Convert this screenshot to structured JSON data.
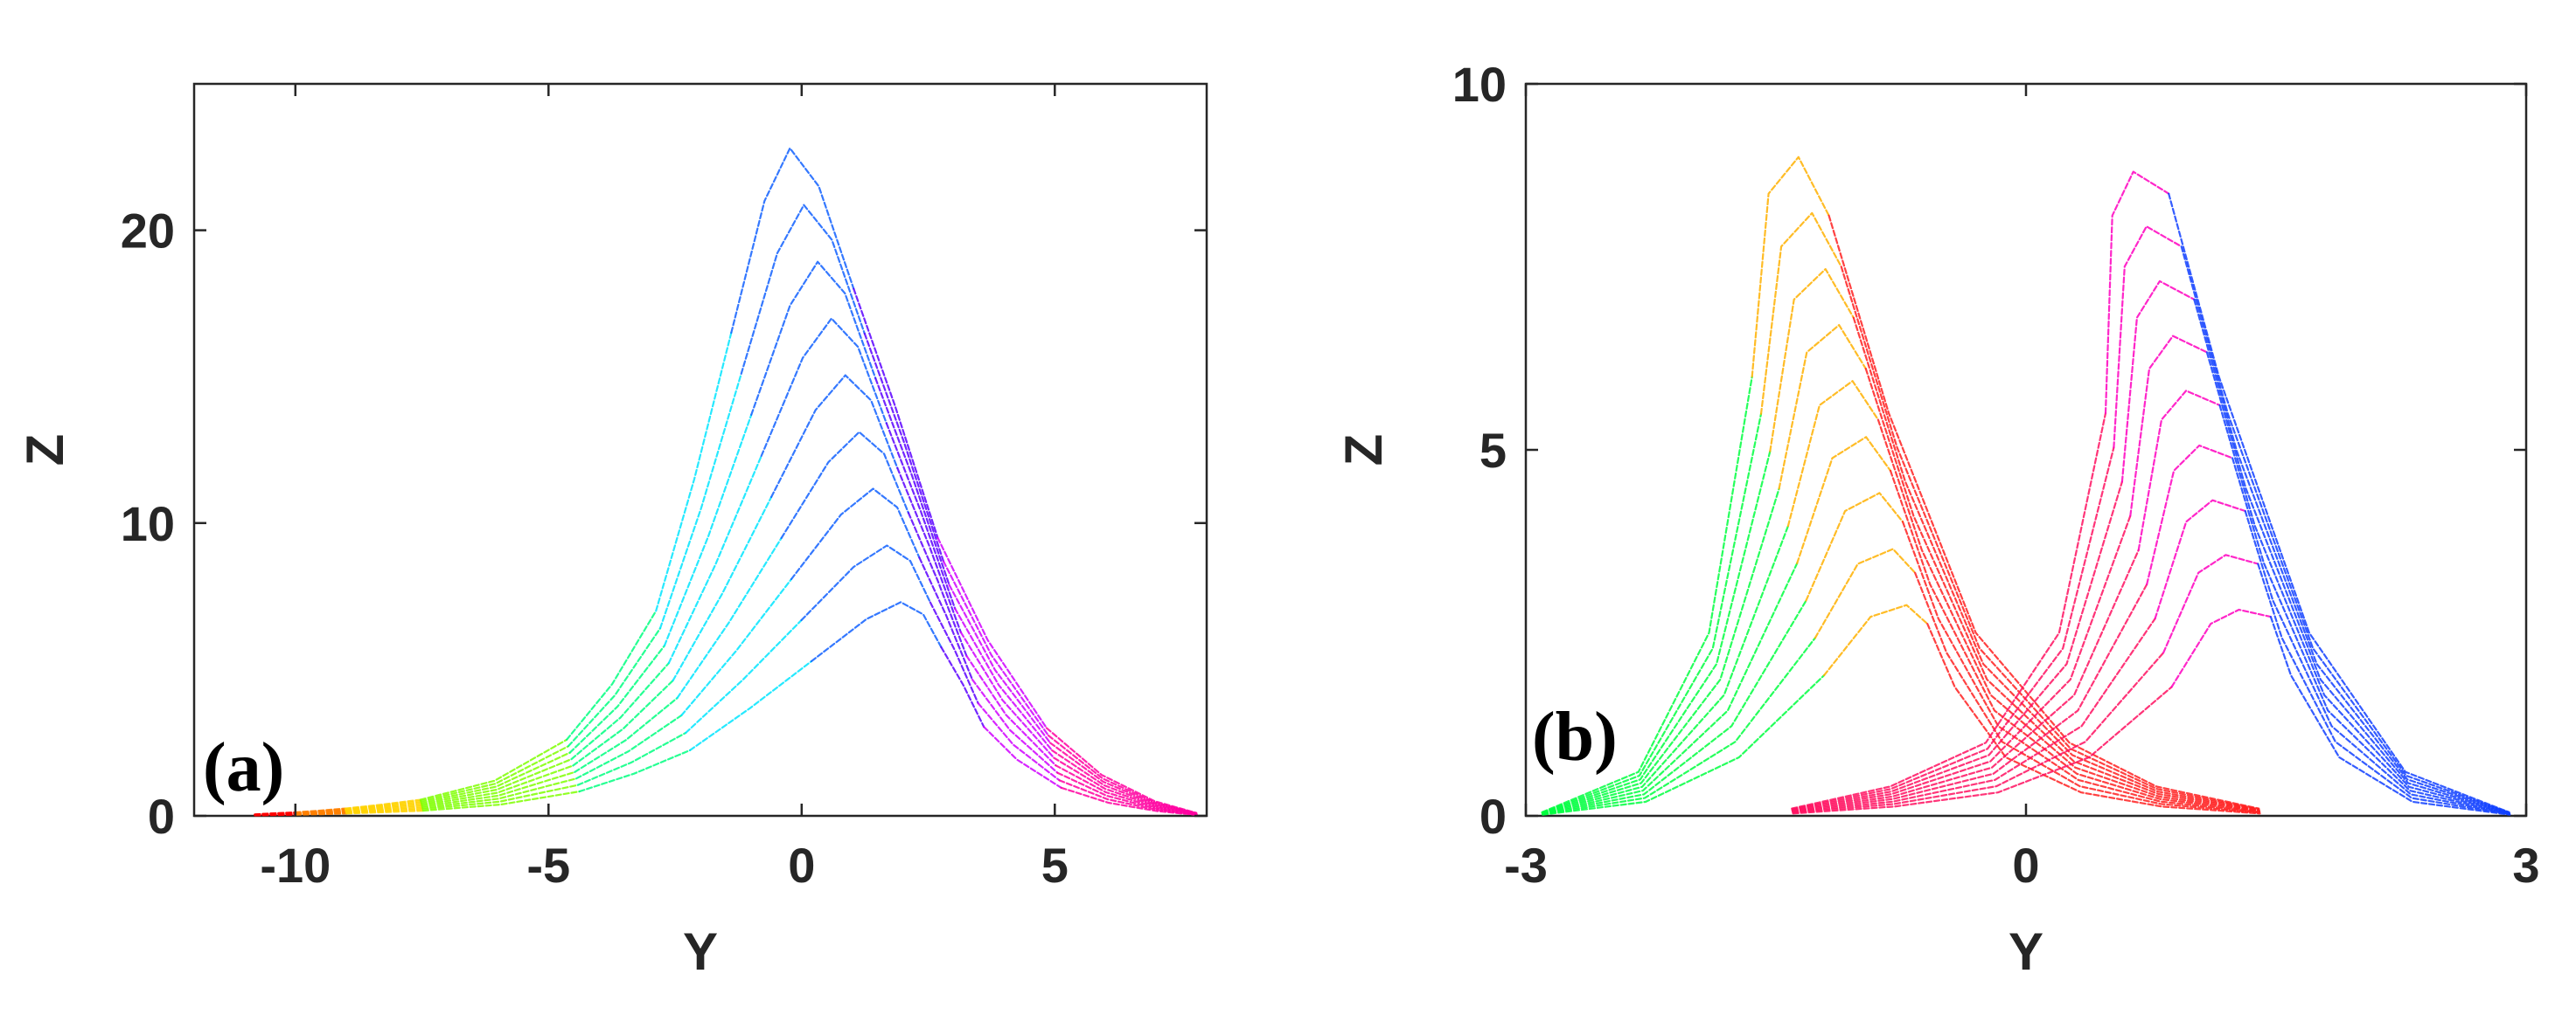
{
  "chart_data": [
    {
      "type": "line",
      "panel_label": "(a)",
      "xlabel": "Y",
      "ylabel": "Z",
      "xlim": [
        -12,
        8
      ],
      "ylim": [
        0,
        25
      ],
      "xticks": [
        -10,
        -5,
        0,
        5
      ],
      "xtick_labels": [
        "-10",
        "-5",
        "0",
        "5"
      ],
      "yticks": [
        0,
        10,
        20
      ],
      "ytick_labels": [
        "0",
        "10",
        "20"
      ],
      "grid": false,
      "legend": "none",
      "colormap": "hsv",
      "series": [
        {
          "color": "#ff0000",
          "x": [
            -10.8,
            -10.5,
            -10.0
          ],
          "y": [
            0.05,
            0.08,
            0.12
          ]
        },
        {
          "color": "#ff8000",
          "x": [
            -10.0,
            -9.5,
            -9.0
          ],
          "y": [
            0.12,
            0.18,
            0.25
          ]
        },
        {
          "color": "#ffd200",
          "x": [
            -9.0,
            -8.3,
            -7.5
          ],
          "y": [
            0.25,
            0.38,
            0.55
          ]
        },
        {
          "color": "#7fff00",
          "x": [
            -7.5,
            -6.0,
            -4.5
          ],
          "y": [
            0.55,
            1.2,
            2.6
          ]
        },
        {
          "color": "#00ff80",
          "x": [
            -4.5,
            -3.5,
            -2.5
          ],
          "y": [
            2.6,
            4.5,
            7.0
          ]
        },
        {
          "color": "#00e5ff",
          "x": [
            -2.5,
            -1.5,
            -0.5
          ],
          "y": [
            7.0,
            11.5,
            16.5
          ]
        },
        {
          "color": "#1060ff",
          "x": [
            -0.5,
            0.4,
            1.0,
            1.5,
            2.0
          ],
          "y": [
            16.5,
            21.0,
            22.8,
            21.5,
            18.0
          ]
        },
        {
          "color": "#5a00ff",
          "x": [
            2.0,
            2.6,
            3.2
          ],
          "y": [
            18.0,
            14.0,
            9.5
          ]
        },
        {
          "color": "#d000ff",
          "x": [
            3.2,
            4.0,
            5.0
          ],
          "y": [
            9.5,
            6.0,
            3.0
          ]
        },
        {
          "color": "#ff00a0",
          "x": [
            5.0,
            6.0,
            7.0,
            7.8
          ],
          "y": [
            3.0,
            1.4,
            0.5,
            0.1
          ]
        }
      ]
    },
    {
      "type": "line",
      "panel_label": "(b)",
      "xlabel": "Y",
      "ylabel": "Z",
      "xlim": [
        -3,
        3
      ],
      "ylim": [
        0,
        10
      ],
      "xticks": [
        -3,
        0,
        3
      ],
      "xtick_labels": [
        "-3",
        "0",
        "3"
      ],
      "yticks": [
        0,
        5,
        10
      ],
      "ytick_labels": [
        "0",
        "5",
        "10"
      ],
      "grid": false,
      "legend": "none",
      "colormap": "hsv",
      "series": [
        {
          "color": "#00ff40",
          "x": [
            -2.9,
            -2.3,
            -1.8,
            -1.4
          ],
          "y": [
            0.05,
            0.6,
            2.5,
            6.0
          ]
        },
        {
          "color": "#ffb000",
          "x": [
            -1.4,
            -1.2,
            -1.0,
            -0.85
          ],
          "y": [
            6.0,
            8.5,
            9.0,
            8.2
          ]
        },
        {
          "color": "#ff2020",
          "x": [
            -0.85,
            -0.6,
            -0.2,
            0.3,
            0.8,
            1.4
          ],
          "y": [
            8.2,
            5.5,
            2.5,
            1.0,
            0.4,
            0.1
          ]
        },
        {
          "color": "#ff1060",
          "x": [
            -1.4,
            -0.8,
            -0.2,
            0.3,
            0.7
          ],
          "y": [
            0.1,
            0.4,
            1.0,
            2.5,
            5.5
          ]
        },
        {
          "color": "#ff00c0",
          "x": [
            0.7,
            0.85,
            1.0,
            1.2
          ],
          "y": [
            5.5,
            8.2,
            8.8,
            8.5
          ]
        },
        {
          "color": "#1040ff",
          "x": [
            1.2,
            1.4,
            1.8,
            2.3,
            2.9
          ],
          "y": [
            8.5,
            6.0,
            2.5,
            0.6,
            0.05
          ]
        }
      ]
    }
  ]
}
